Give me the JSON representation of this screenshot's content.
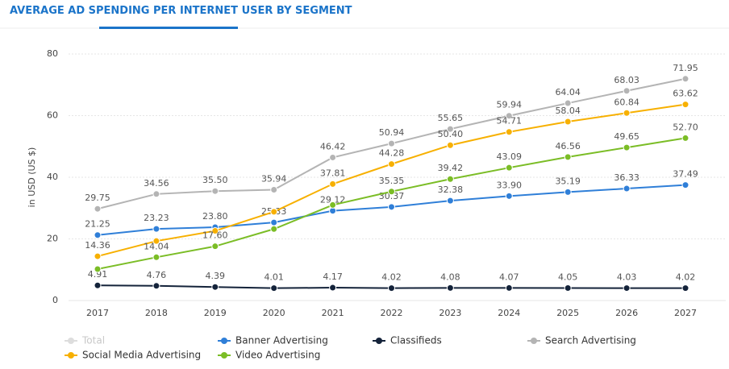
{
  "chart_data": {
    "type": "line",
    "title": "AVERAGE AD SPENDING PER INTERNET USER BY SEGMENT",
    "y_label": "in USD (US $)",
    "categories": [
      "2017",
      "2018",
      "2019",
      "2020",
      "2021",
      "2022",
      "2023",
      "2024",
      "2025",
      "2026",
      "2027"
    ],
    "ylim": [
      0,
      80
    ],
    "yticks": [
      0,
      20,
      40,
      60,
      80
    ],
    "grid": true,
    "series": [
      {
        "name": "Total",
        "color": "#c8c8c8",
        "visible": false
      },
      {
        "name": "Banner Advertising",
        "color": "#2f7fd8",
        "values": [
          21.25,
          23.23,
          23.8,
          25.33,
          29.12,
          30.37,
          32.38,
          33.9,
          35.19,
          36.33,
          37.49
        ],
        "value_labels": [
          "21.25",
          "23.23",
          "23.80",
          "25.33",
          "29.12",
          "30.37",
          "32.38",
          "33.90",
          "35.19",
          "36.33",
          "37.49"
        ]
      },
      {
        "name": "Classifieds",
        "color": "#14233a",
        "values": [
          4.91,
          4.76,
          4.39,
          4.01,
          4.17,
          4.02,
          4.08,
          4.07,
          4.05,
          4.03,
          4.02
        ],
        "value_labels": [
          "4.91",
          "4.76",
          "4.39",
          "4.01",
          "4.17",
          "4.02",
          "4.08",
          "4.07",
          "4.05",
          "4.03",
          "4.02"
        ]
      },
      {
        "name": "Search Advertising",
        "color": "#b4b4b4",
        "values": [
          29.75,
          34.56,
          35.5,
          35.94,
          46.42,
          50.94,
          55.65,
          59.94,
          64.04,
          68.03,
          71.95
        ],
        "value_labels": [
          "29.75",
          "34.56",
          "35.50",
          "35.94",
          "46.42",
          "50.94",
          "55.65",
          "59.94",
          "64.04",
          "68.03",
          "71.95"
        ]
      },
      {
        "name": "Social Media Advertising",
        "color": "#f7b000",
        "values": [
          14.36,
          19.3,
          22.6,
          28.8,
          37.81,
          44.28,
          50.4,
          54.71,
          58.04,
          60.84,
          63.62
        ],
        "value_labels": [
          "14.36",
          null,
          null,
          null,
          "37.81",
          "44.28",
          "50.40",
          "54.71",
          "58.04",
          "60.84",
          "63.62"
        ]
      },
      {
        "name": "Video Advertising",
        "color": "#7bbd26",
        "values": [
          10.2,
          14.04,
          17.6,
          23.2,
          31.0,
          35.35,
          39.42,
          43.09,
          46.56,
          49.65,
          52.7
        ],
        "value_labels": [
          null,
          "14.04",
          "17.60",
          null,
          null,
          "35.35",
          "39.42",
          "43.09",
          "46.56",
          "49.65",
          "52.70"
        ]
      }
    ]
  }
}
